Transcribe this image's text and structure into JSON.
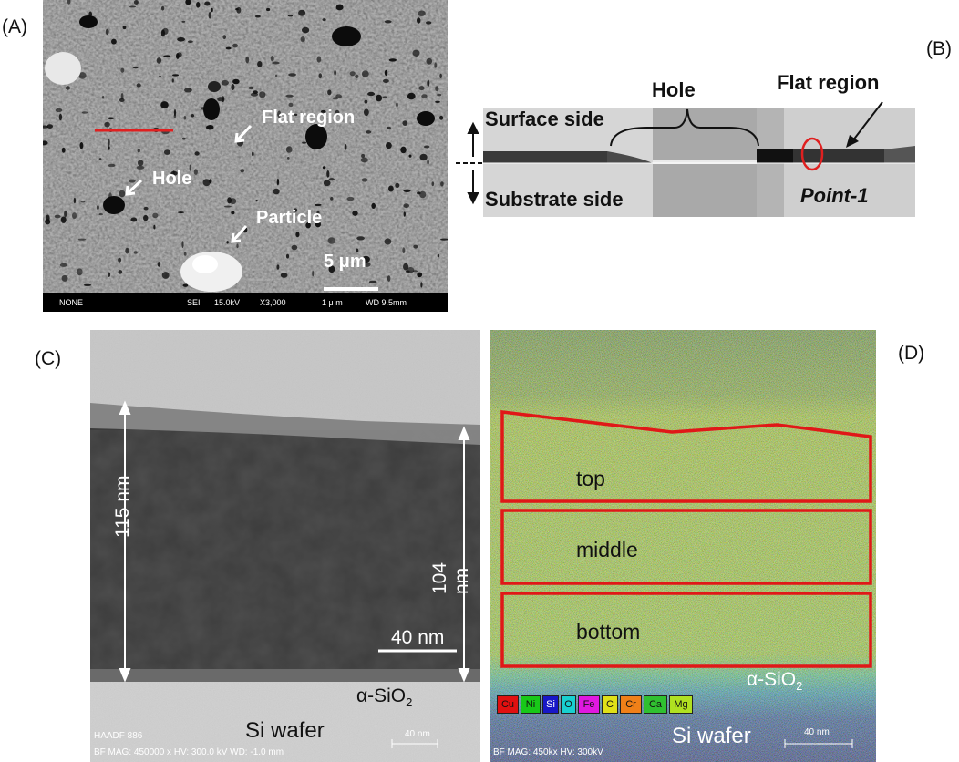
{
  "panels": {
    "a": {
      "label": "(A)",
      "annotations": {
        "flat": "Flat region",
        "hole": "Hole",
        "particle": "Particle",
        "scale": "5 μm"
      },
      "status_bar": {
        "mode": "NONE",
        "det": "SEI",
        "kv": "15.0kV",
        "mag": "X3,000",
        "scale": "1 μ m",
        "wd": "WD 9.5mm"
      }
    },
    "b": {
      "label": "(B)",
      "annotations": {
        "hole": "Hole",
        "flat": "Flat region",
        "surface": "Surface side",
        "substrate": "Substrate side",
        "point": "Point-1"
      }
    },
    "c": {
      "label": "(C)",
      "thickness_left": "115 nm",
      "thickness_right": "104 nm",
      "scale_big": "40 nm",
      "sio2": "α-SiO",
      "sio2_sub": "2",
      "wafer": "Si wafer",
      "footer1": "HAADF 886",
      "footer2": "BF  MAG: 450000 x  HV: 300.0 kV  WD: -1.0 mm",
      "scale_small": "40 nm"
    },
    "d": {
      "label": "(D)",
      "regions": [
        "top",
        "middle",
        "bottom"
      ],
      "sio2": "α-SiO",
      "sio2_sub": "2",
      "wafer": "Si wafer",
      "legend": [
        {
          "text": "Cu",
          "color": "#e01010"
        },
        {
          "text": "Ni",
          "color": "#18c818"
        },
        {
          "text": "Si",
          "color": "#1818c8"
        },
        {
          "text": "O",
          "color": "#18d0d0"
        },
        {
          "text": "Fe",
          "color": "#e018e0"
        },
        {
          "text": "C",
          "color": "#e0e018"
        },
        {
          "text": "Cr",
          "color": "#f08018"
        },
        {
          "text": "Ca",
          "color": "#30c030"
        },
        {
          "text": "Mg",
          "color": "#b0e020"
        }
      ],
      "footer": "BF  MAG: 450kx  HV: 300kV",
      "scale_small": "40 nm"
    }
  }
}
